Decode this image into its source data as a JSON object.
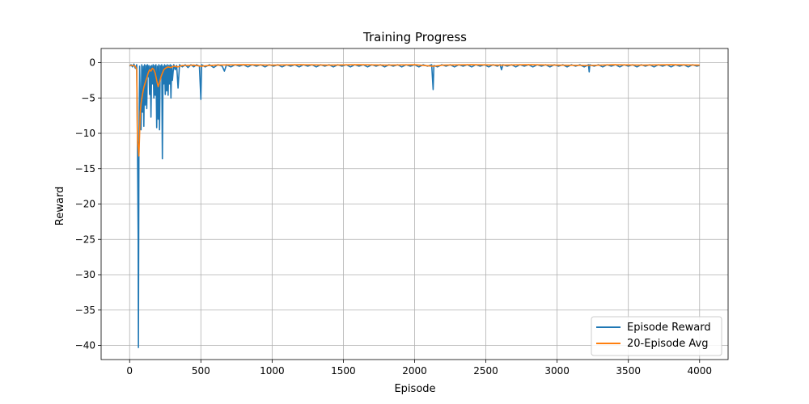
{
  "chart_data": {
    "type": "line",
    "title": "Training Progress",
    "xlabel": "Episode",
    "ylabel": "Reward",
    "xlim": [
      -200,
      4200
    ],
    "ylim": [
      -42,
      2
    ],
    "xticks": [
      0,
      500,
      1000,
      1500,
      2000,
      2500,
      3000,
      3500,
      4000
    ],
    "yticks": [
      0,
      -5,
      -10,
      -15,
      -20,
      -25,
      -30,
      -35,
      -40
    ],
    "grid": true,
    "legend": "lower-right",
    "series": [
      {
        "name": "Episode Reward",
        "color": "#1f77b4",
        "points": [
          [
            0,
            -0.5
          ],
          [
            10,
            -0.3
          ],
          [
            20,
            -0.6
          ],
          [
            30,
            -0.2
          ],
          [
            40,
            -0.8
          ],
          [
            50,
            -0.3
          ],
          [
            55,
            -11
          ],
          [
            60,
            -25
          ],
          [
            62,
            -40.3
          ],
          [
            65,
            -13
          ],
          [
            70,
            -0.5
          ],
          [
            75,
            -5
          ],
          [
            80,
            -9.5
          ],
          [
            85,
            -0.3
          ],
          [
            90,
            -7
          ],
          [
            95,
            -0.5
          ],
          [
            100,
            -9
          ],
          [
            105,
            -0.3
          ],
          [
            110,
            -6
          ],
          [
            115,
            -0.4
          ],
          [
            120,
            -6.5
          ],
          [
            125,
            -0.3
          ],
          [
            130,
            -2
          ],
          [
            135,
            -0.4
          ],
          [
            140,
            -4.5
          ],
          [
            145,
            -0.5
          ],
          [
            150,
            -7.7
          ],
          [
            155,
            -0.4
          ],
          [
            160,
            -3
          ],
          [
            165,
            -0.3
          ],
          [
            170,
            -5
          ],
          [
            175,
            -0.4
          ],
          [
            180,
            -4.6
          ],
          [
            185,
            -0.3
          ],
          [
            190,
            -9.2
          ],
          [
            195,
            -0.5
          ],
          [
            200,
            -8
          ],
          [
            205,
            -0.3
          ],
          [
            210,
            -9.5
          ],
          [
            215,
            -0.4
          ],
          [
            220,
            -2
          ],
          [
            225,
            -0.3
          ],
          [
            230,
            -13.6
          ],
          [
            235,
            -0.5
          ],
          [
            240,
            -3
          ],
          [
            245,
            -0.3
          ],
          [
            250,
            -4.5
          ],
          [
            255,
            -0.4
          ],
          [
            260,
            -4
          ],
          [
            265,
            -0.3
          ],
          [
            270,
            -4.6
          ],
          [
            275,
            -0.4
          ],
          [
            280,
            -3
          ],
          [
            285,
            -0.3
          ],
          [
            290,
            -5
          ],
          [
            295,
            -0.4
          ],
          [
            300,
            -2.5
          ],
          [
            310,
            -0.3
          ],
          [
            320,
            -1
          ],
          [
            330,
            -0.4
          ],
          [
            340,
            -3.6
          ],
          [
            350,
            -0.3
          ],
          [
            370,
            -0.6
          ],
          [
            390,
            -0.3
          ],
          [
            410,
            -0.7
          ],
          [
            430,
            -0.3
          ],
          [
            450,
            -0.6
          ],
          [
            470,
            -0.3
          ],
          [
            490,
            -0.5
          ],
          [
            500,
            -5.2
          ],
          [
            505,
            -0.3
          ],
          [
            530,
            -0.6
          ],
          [
            560,
            -0.3
          ],
          [
            590,
            -0.7
          ],
          [
            620,
            -0.3
          ],
          [
            650,
            -0.5
          ],
          [
            665,
            -1.2
          ],
          [
            680,
            -0.3
          ],
          [
            710,
            -0.6
          ],
          [
            740,
            -0.3
          ],
          [
            770,
            -0.5
          ],
          [
            800,
            -0.3
          ],
          [
            830,
            -0.6
          ],
          [
            860,
            -0.3
          ],
          [
            890,
            -0.5
          ],
          [
            920,
            -0.3
          ],
          [
            950,
            -0.6
          ],
          [
            980,
            -0.3
          ],
          [
            1010,
            -0.5
          ],
          [
            1040,
            -0.3
          ],
          [
            1070,
            -0.6
          ],
          [
            1100,
            -0.3
          ],
          [
            1130,
            -0.5
          ],
          [
            1160,
            -0.3
          ],
          [
            1190,
            -0.6
          ],
          [
            1220,
            -0.3
          ],
          [
            1250,
            -0.5
          ],
          [
            1280,
            -0.3
          ],
          [
            1310,
            -0.6
          ],
          [
            1340,
            -0.3
          ],
          [
            1370,
            -0.5
          ],
          [
            1400,
            -0.3
          ],
          [
            1430,
            -0.6
          ],
          [
            1460,
            -0.3
          ],
          [
            1490,
            -0.5
          ],
          [
            1520,
            -0.3
          ],
          [
            1550,
            -0.6
          ],
          [
            1580,
            -0.3
          ],
          [
            1610,
            -0.5
          ],
          [
            1640,
            -0.3
          ],
          [
            1670,
            -0.6
          ],
          [
            1700,
            -0.3
          ],
          [
            1730,
            -0.5
          ],
          [
            1760,
            -0.3
          ],
          [
            1790,
            -0.6
          ],
          [
            1820,
            -0.3
          ],
          [
            1850,
            -0.5
          ],
          [
            1880,
            -0.3
          ],
          [
            1910,
            -0.6
          ],
          [
            1940,
            -0.3
          ],
          [
            1970,
            -0.5
          ],
          [
            2000,
            -0.3
          ],
          [
            2030,
            -0.6
          ],
          [
            2060,
            -0.3
          ],
          [
            2090,
            -0.5
          ],
          [
            2120,
            -0.3
          ],
          [
            2130,
            -3.8
          ],
          [
            2135,
            -0.4
          ],
          [
            2160,
            -0.6
          ],
          [
            2190,
            -0.3
          ],
          [
            2220,
            -0.5
          ],
          [
            2250,
            -0.3
          ],
          [
            2280,
            -0.6
          ],
          [
            2310,
            -0.3
          ],
          [
            2340,
            -0.5
          ],
          [
            2370,
            -0.3
          ],
          [
            2400,
            -0.6
          ],
          [
            2430,
            -0.3
          ],
          [
            2460,
            -0.5
          ],
          [
            2490,
            -0.3
          ],
          [
            2520,
            -0.6
          ],
          [
            2550,
            -0.3
          ],
          [
            2580,
            -0.5
          ],
          [
            2600,
            -0.3
          ],
          [
            2610,
            -1
          ],
          [
            2620,
            -0.3
          ],
          [
            2650,
            -0.5
          ],
          [
            2680,
            -0.3
          ],
          [
            2710,
            -0.6
          ],
          [
            2740,
            -0.3
          ],
          [
            2770,
            -0.5
          ],
          [
            2800,
            -0.3
          ],
          [
            2830,
            -0.6
          ],
          [
            2860,
            -0.3
          ],
          [
            2890,
            -0.5
          ],
          [
            2920,
            -0.3
          ],
          [
            2950,
            -0.6
          ],
          [
            2980,
            -0.3
          ],
          [
            3010,
            -0.5
          ],
          [
            3040,
            -0.3
          ],
          [
            3070,
            -0.6
          ],
          [
            3100,
            -0.3
          ],
          [
            3130,
            -0.5
          ],
          [
            3160,
            -0.3
          ],
          [
            3190,
            -0.6
          ],
          [
            3220,
            -0.3
          ],
          [
            3225,
            -1.3
          ],
          [
            3230,
            -0.3
          ],
          [
            3260,
            -0.5
          ],
          [
            3290,
            -0.3
          ],
          [
            3320,
            -0.6
          ],
          [
            3350,
            -0.3
          ],
          [
            3380,
            -0.5
          ],
          [
            3410,
            -0.3
          ],
          [
            3440,
            -0.6
          ],
          [
            3470,
            -0.3
          ],
          [
            3500,
            -0.5
          ],
          [
            3530,
            -0.3
          ],
          [
            3560,
            -0.6
          ],
          [
            3590,
            -0.3
          ],
          [
            3620,
            -0.5
          ],
          [
            3650,
            -0.3
          ],
          [
            3680,
            -0.6
          ],
          [
            3710,
            -0.3
          ],
          [
            3740,
            -0.5
          ],
          [
            3770,
            -0.3
          ],
          [
            3800,
            -0.6
          ],
          [
            3830,
            -0.3
          ],
          [
            3860,
            -0.5
          ],
          [
            3890,
            -0.3
          ],
          [
            3920,
            -0.6
          ],
          [
            3950,
            -0.3
          ],
          [
            3980,
            -0.5
          ],
          [
            4000,
            -0.4
          ]
        ]
      },
      {
        "name": "20-Episode Avg",
        "color": "#ff7f0e",
        "points": [
          [
            0,
            -0.4
          ],
          [
            20,
            -0.4
          ],
          [
            40,
            -0.5
          ],
          [
            50,
            -1
          ],
          [
            55,
            -11
          ],
          [
            60,
            -12
          ],
          [
            65,
            -13.2
          ],
          [
            70,
            -10
          ],
          [
            75,
            -7
          ],
          [
            80,
            -5.8
          ],
          [
            90,
            -4.5
          ],
          [
            100,
            -3.5
          ],
          [
            110,
            -2.8
          ],
          [
            120,
            -2.2
          ],
          [
            130,
            -1.5
          ],
          [
            140,
            -1
          ],
          [
            150,
            -1.2
          ],
          [
            160,
            -0.8
          ],
          [
            170,
            -1
          ],
          [
            180,
            -1.5
          ],
          [
            190,
            -2.5
          ],
          [
            200,
            -3.4
          ],
          [
            210,
            -2.8
          ],
          [
            220,
            -2
          ],
          [
            230,
            -1.5
          ],
          [
            240,
            -1
          ],
          [
            250,
            -0.8
          ],
          [
            270,
            -0.6
          ],
          [
            290,
            -0.7
          ],
          [
            310,
            -0.5
          ],
          [
            340,
            -0.6
          ],
          [
            370,
            -0.4
          ],
          [
            400,
            -0.4
          ],
          [
            450,
            -0.35
          ],
          [
            500,
            -0.5
          ],
          [
            600,
            -0.35
          ],
          [
            800,
            -0.3
          ],
          [
            1000,
            -0.35
          ],
          [
            1200,
            -0.3
          ],
          [
            1400,
            -0.35
          ],
          [
            1600,
            -0.3
          ],
          [
            1800,
            -0.35
          ],
          [
            2000,
            -0.3
          ],
          [
            2130,
            -0.5
          ],
          [
            2200,
            -0.35
          ],
          [
            2400,
            -0.3
          ],
          [
            2600,
            -0.35
          ],
          [
            2800,
            -0.3
          ],
          [
            3000,
            -0.35
          ],
          [
            3225,
            -0.4
          ],
          [
            3400,
            -0.3
          ],
          [
            3600,
            -0.35
          ],
          [
            3800,
            -0.3
          ],
          [
            4000,
            -0.35
          ]
        ]
      }
    ]
  }
}
